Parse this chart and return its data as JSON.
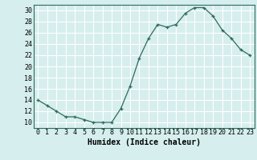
{
  "x": [
    0,
    1,
    2,
    3,
    4,
    5,
    6,
    7,
    8,
    9,
    10,
    11,
    12,
    13,
    14,
    15,
    16,
    17,
    18,
    19,
    20,
    21,
    22,
    23
  ],
  "y": [
    14,
    13,
    12,
    11,
    11,
    10.5,
    10,
    10,
    10,
    12.5,
    16.5,
    21.5,
    25,
    27.5,
    27,
    27.5,
    29.5,
    30.5,
    30.5,
    29,
    26.5,
    25,
    23,
    22
  ],
  "xlabel": "Humidex (Indice chaleur)",
  "xlim": [
    -0.5,
    23.5
  ],
  "ylim": [
    9,
    31
  ],
  "yticks": [
    10,
    12,
    14,
    16,
    18,
    20,
    22,
    24,
    26,
    28,
    30
  ],
  "xticks": [
    0,
    1,
    2,
    3,
    4,
    5,
    6,
    7,
    8,
    9,
    10,
    11,
    12,
    13,
    14,
    15,
    16,
    17,
    18,
    19,
    20,
    21,
    22,
    23
  ],
  "line_color": "#2e6b5e",
  "marker": "+",
  "bg_color": "#d6eeee",
  "grid_color": "#ffffff",
  "label_fontsize": 7,
  "tick_fontsize": 6
}
